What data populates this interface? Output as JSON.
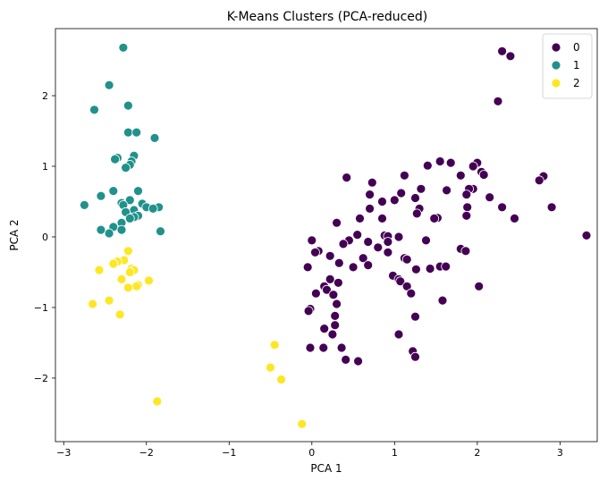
{
  "chart_data": {
    "type": "scatter",
    "title": "K-Means Clusters (PCA-reduced)",
    "xlabel": "PCA 1",
    "ylabel": "PCA 2",
    "xlim": [
      -3.1,
      3.45
    ],
    "ylim": [
      -2.9,
      2.95
    ],
    "xticks": [
      -3,
      -2,
      -1,
      0,
      1,
      2,
      3
    ],
    "yticks": [
      -2,
      -1,
      0,
      1,
      2
    ],
    "grid": false,
    "legend_position": "top-right",
    "series": [
      {
        "name": "0",
        "color": "#440154",
        "points": [
          [
            2.3,
            2.63
          ],
          [
            2.4,
            2.56
          ],
          [
            2.25,
            1.92
          ],
          [
            1.55,
            1.07
          ],
          [
            1.68,
            1.05
          ],
          [
            2.0,
            1.05
          ],
          [
            1.95,
            1.0
          ],
          [
            2.05,
            0.92
          ],
          [
            2.08,
            0.88
          ],
          [
            1.8,
            0.87
          ],
          [
            1.12,
            0.87
          ],
          [
            2.8,
            0.86
          ],
          [
            2.75,
            0.8
          ],
          [
            0.42,
            0.84
          ],
          [
            0.73,
            0.77
          ],
          [
            1.4,
            1.01
          ],
          [
            1.95,
            0.68
          ],
          [
            1.9,
            0.68
          ],
          [
            1.87,
            0.6
          ],
          [
            1.32,
            0.68
          ],
          [
            1.63,
            0.66
          ],
          [
            1.08,
            0.62
          ],
          [
            2.15,
            0.56
          ],
          [
            0.7,
            0.6
          ],
          [
            1.25,
            0.55
          ],
          [
            1.0,
            0.52
          ],
          [
            0.85,
            0.5
          ],
          [
            0.7,
            0.4
          ],
          [
            1.3,
            0.4
          ],
          [
            2.3,
            0.42
          ],
          [
            2.9,
            0.42
          ],
          [
            1.88,
            0.42
          ],
          [
            1.87,
            0.3
          ],
          [
            1.27,
            0.33
          ],
          [
            1.52,
            0.27
          ],
          [
            1.48,
            0.26
          ],
          [
            2.45,
            0.26
          ],
          [
            0.85,
            0.26
          ],
          [
            0.58,
            0.26
          ],
          [
            0.3,
            0.2
          ],
          [
            3.32,
            0.02
          ],
          [
            0.55,
            0.03
          ],
          [
            0.88,
            0.02
          ],
          [
            0.92,
            0.01
          ],
          [
            1.05,
            0.0
          ],
          [
            1.38,
            -0.05
          ],
          [
            0.68,
            -0.07
          ],
          [
            0.45,
            -0.05
          ],
          [
            0.0,
            -0.05
          ],
          [
            0.38,
            -0.1
          ],
          [
            0.8,
            -0.15
          ],
          [
            1.8,
            -0.17
          ],
          [
            1.86,
            -0.2
          ],
          [
            0.08,
            -0.2
          ],
          [
            0.04,
            -0.22
          ],
          [
            0.92,
            -0.22
          ],
          [
            0.22,
            -0.27
          ],
          [
            0.62,
            -0.3
          ],
          [
            1.12,
            -0.3
          ],
          [
            1.15,
            -0.32
          ],
          [
            0.33,
            -0.37
          ],
          [
            0.68,
            -0.4
          ],
          [
            1.26,
            -0.46
          ],
          [
            1.55,
            -0.42
          ],
          [
            1.43,
            -0.45
          ],
          [
            0.5,
            -0.43
          ],
          [
            -0.05,
            -0.43
          ],
          [
            1.62,
            -0.42
          ],
          [
            0.98,
            -0.55
          ],
          [
            1.05,
            -0.6
          ],
          [
            1.07,
            -0.63
          ],
          [
            0.22,
            -0.6
          ],
          [
            0.32,
            -0.65
          ],
          [
            0.15,
            -0.7
          ],
          [
            0.18,
            -0.75
          ],
          [
            0.05,
            -0.8
          ],
          [
            0.26,
            -0.82
          ],
          [
            1.15,
            -0.7
          ],
          [
            1.2,
            -0.8
          ],
          [
            1.58,
            -0.9
          ],
          [
            0.3,
            -0.95
          ],
          [
            0.28,
            -1.12
          ],
          [
            1.25,
            -1.13
          ],
          [
            -0.02,
            -1.02
          ],
          [
            -0.04,
            -1.05
          ],
          [
            0.28,
            -1.25
          ],
          [
            0.15,
            -1.3
          ],
          [
            0.25,
            -1.38
          ],
          [
            1.05,
            -1.38
          ],
          [
            -0.02,
            -1.57
          ],
          [
            0.14,
            -1.57
          ],
          [
            0.36,
            -1.57
          ],
          [
            1.22,
            -1.62
          ],
          [
            1.25,
            -1.7
          ],
          [
            0.41,
            -1.74
          ],
          [
            0.56,
            -1.76
          ],
          [
            2.02,
            -0.7
          ],
          [
            0.92,
            -0.07
          ]
        ]
      },
      {
        "name": "1",
        "color": "#21918c",
        "points": [
          [
            -2.28,
            2.68
          ],
          [
            -2.45,
            2.15
          ],
          [
            -2.22,
            1.86
          ],
          [
            -2.63,
            1.8
          ],
          [
            -2.22,
            1.48
          ],
          [
            -2.12,
            1.48
          ],
          [
            -1.9,
            1.4
          ],
          [
            -2.35,
            1.12
          ],
          [
            -2.38,
            1.1
          ],
          [
            -2.15,
            1.15
          ],
          [
            -2.18,
            1.07
          ],
          [
            -2.2,
            1.02
          ],
          [
            -2.25,
            0.98
          ],
          [
            -2.1,
            0.65
          ],
          [
            -2.4,
            0.65
          ],
          [
            -2.55,
            0.58
          ],
          [
            -2.2,
            0.52
          ],
          [
            -2.3,
            0.48
          ],
          [
            -2.75,
            0.45
          ],
          [
            -2.28,
            0.45
          ],
          [
            -2.05,
            0.47
          ],
          [
            -2.0,
            0.42
          ],
          [
            -1.85,
            0.42
          ],
          [
            -1.92,
            0.4
          ],
          [
            -2.15,
            0.38
          ],
          [
            -2.25,
            0.35
          ],
          [
            -2.1,
            0.3
          ],
          [
            -2.15,
            0.28
          ],
          [
            -2.2,
            0.26
          ],
          [
            -2.3,
            0.2
          ],
          [
            -2.4,
            0.14
          ],
          [
            -2.3,
            0.1
          ],
          [
            -1.83,
            0.08
          ],
          [
            -2.45,
            0.05
          ],
          [
            -2.55,
            0.1
          ]
        ]
      },
      {
        "name": "2",
        "color": "#fde725",
        "points": [
          [
            -2.22,
            -0.2
          ],
          [
            -2.27,
            -0.33
          ],
          [
            -2.35,
            -0.35
          ],
          [
            -2.4,
            -0.38
          ],
          [
            -2.18,
            -0.45
          ],
          [
            -2.15,
            -0.47
          ],
          [
            -2.2,
            -0.5
          ],
          [
            -2.57,
            -0.47
          ],
          [
            -2.3,
            -0.6
          ],
          [
            -1.97,
            -0.62
          ],
          [
            -2.1,
            -0.68
          ],
          [
            -2.12,
            -0.7
          ],
          [
            -2.22,
            -0.72
          ],
          [
            -2.45,
            -0.9
          ],
          [
            -2.65,
            -0.95
          ],
          [
            -2.32,
            -1.1
          ],
          [
            -1.87,
            -2.33
          ],
          [
            -0.45,
            -1.53
          ],
          [
            -0.5,
            -1.85
          ],
          [
            -0.37,
            -2.02
          ],
          [
            -0.12,
            -2.65
          ]
        ]
      }
    ]
  }
}
